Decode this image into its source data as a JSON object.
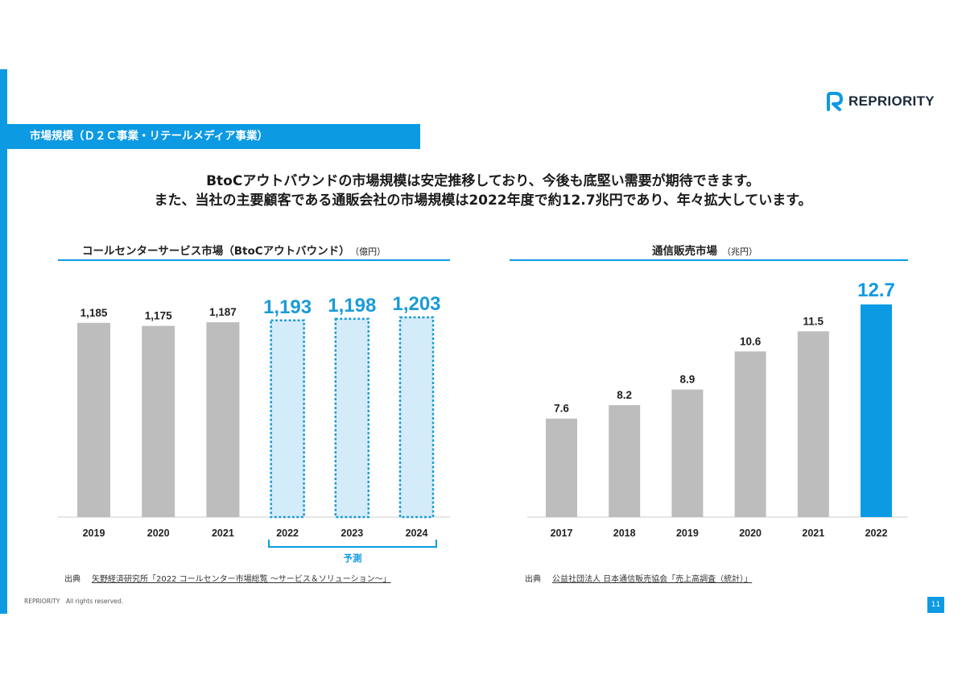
{
  "brand": {
    "name": "REPRIORITY",
    "color": "#0c9ae3",
    "logo_icon": "r-logo-icon"
  },
  "section_title": "市場規模（Ｄ２Ｃ事業・リテールメディア事業）",
  "lead": {
    "line1": "BtoCアウトバウンドの市場規模は安定推移しており、今後も底堅い需要が期待できます。",
    "line2": "また、当社の主要顧客である通販会社の市場規模は2022年度で約12.7兆円であり、年々拡大しています。"
  },
  "chart_data": [
    {
      "type": "bar",
      "title": "コールセンターサービス市場（BtoCアウトバウンド）",
      "unit": "（億円）",
      "categories": [
        "2019",
        "2020",
        "2021",
        "2022",
        "2023",
        "2024"
      ],
      "values": [
        1185,
        1175,
        1187,
        1193,
        1198,
        1203
      ],
      "value_labels": [
        "1,185",
        "1,175",
        "1,187",
        "1,193",
        "1,198",
        "1,203"
      ],
      "forecast_categories": [
        "2022",
        "2023",
        "2024"
      ],
      "forecast_label": "予測",
      "colors": {
        "actual": "#bdbdbd",
        "forecast_fill": "#d4ecf9",
        "forecast_border": "#1b9bd7",
        "forecast_text": "#1b9bd7"
      },
      "ylim": [
        0,
        1203
      ],
      "source_label": "出典",
      "source": "矢野経済研究所「2022 コールセンター市場総覧 ～サービス＆ソリューション～」"
    },
    {
      "type": "bar",
      "title": "通信販売市場",
      "unit": "（兆円）",
      "categories": [
        "2017",
        "2018",
        "2019",
        "2020",
        "2021",
        "2022"
      ],
      "values": [
        7.6,
        8.2,
        8.9,
        10.6,
        11.5,
        12.7
      ],
      "value_labels": [
        "7.6",
        "8.2",
        "8.9",
        "10.6",
        "11.5",
        "12.7"
      ],
      "highlight_category": "2022",
      "colors": {
        "actual": "#bdbdbd",
        "highlight": "#0c9ae3"
      },
      "ylim": [
        0,
        12.7
      ],
      "source_label": "出典",
      "source": "公益社団法人 日本通信販売協会「売上高調査（統計）」"
    }
  ],
  "footer": {
    "copyright": "REPRIORITY　All rights reserved.",
    "page": "11"
  }
}
